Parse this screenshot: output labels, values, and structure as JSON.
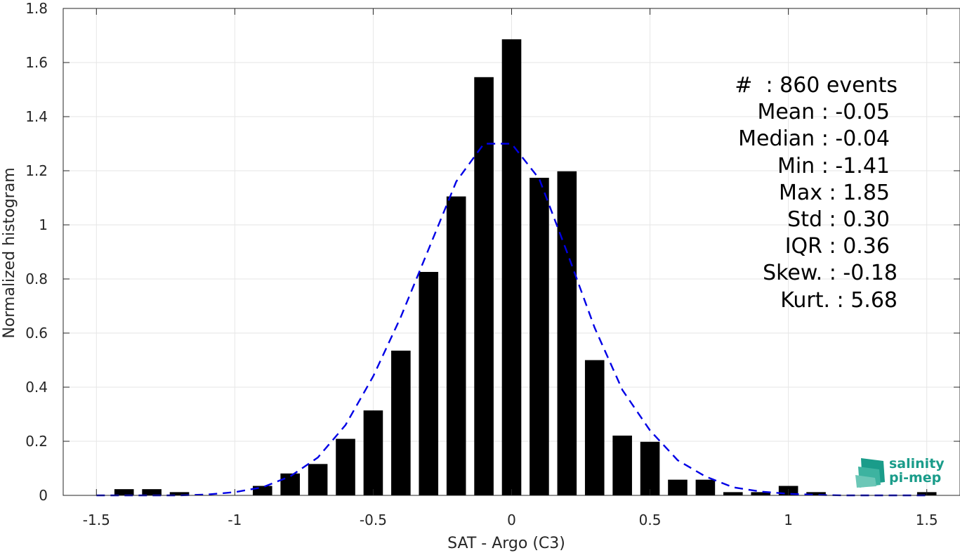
{
  "chart_data": {
    "type": "bar",
    "xlabel": "SAT - Argo (C3)",
    "ylabel": "Normalized histogram",
    "xlim": [
      -1.62,
      1.62
    ],
    "ylim": [
      0,
      1.8
    ],
    "xticks": [
      -1.5,
      -1,
      -0.5,
      0,
      0.5,
      1,
      1.5
    ],
    "xtick_labels": [
      "-1.5",
      "-1",
      "-0.5",
      "0",
      "0.5",
      "1",
      "1.5"
    ],
    "yticks": [
      0,
      0.2,
      0.4,
      0.6,
      0.8,
      1,
      1.2,
      1.4,
      1.6,
      1.8
    ],
    "ytick_labels": [
      "0",
      "0.2",
      "0.4",
      "0.6",
      "0.8",
      "1",
      "1.2",
      "1.4",
      "1.6",
      "1.8"
    ],
    "grid": true,
    "bar_color": "#000000",
    "curve_color": "#0000e6",
    "histogram": {
      "bin_centers": [
        -1.4,
        -1.3,
        -1.2,
        -0.9,
        -0.8,
        -0.7,
        -0.6,
        -0.5,
        -0.4,
        -0.3,
        -0.2,
        -0.1,
        0.0,
        0.1,
        0.2,
        0.3,
        0.4,
        0.5,
        0.6,
        0.7,
        0.8,
        0.9,
        1.0,
        1.1,
        1.5
      ],
      "values": [
        0.023,
        0.023,
        0.012,
        0.035,
        0.081,
        0.116,
        0.209,
        0.314,
        0.535,
        0.826,
        1.105,
        1.546,
        1.686,
        1.174,
        1.198,
        0.5,
        0.221,
        0.198,
        0.058,
        0.058,
        0.012,
        0.012,
        0.035,
        0.012,
        0.012
      ]
    },
    "fit_curve": {
      "x": [
        -1.5,
        -1.4,
        -1.3,
        -1.2,
        -1.1,
        -1.0,
        -0.9,
        -0.8,
        -0.7,
        -0.6,
        -0.5,
        -0.4,
        -0.3,
        -0.2,
        -0.1,
        -0.05,
        0.0,
        0.1,
        0.2,
        0.3,
        0.4,
        0.5,
        0.6,
        0.7,
        0.8,
        0.9,
        1.0,
        1.1,
        1.2,
        1.3,
        1.4,
        1.5
      ],
      "y": [
        0.0,
        0.0,
        0.0,
        0.0,
        0.003,
        0.012,
        0.03,
        0.07,
        0.14,
        0.26,
        0.44,
        0.66,
        0.91,
        1.16,
        1.3,
        1.3,
        1.3,
        1.17,
        0.9,
        0.62,
        0.39,
        0.24,
        0.13,
        0.07,
        0.03,
        0.014,
        0.006,
        0.002,
        0.0,
        0.0,
        0.0,
        0.0
      ]
    },
    "annotations": [
      "#  : 860 events",
      "Mean : -0.05",
      "Median : -0.04",
      "Min : -1.41",
      "Max : 1.85",
      "Std : 0.30",
      "IQR : 0.36",
      "Skew. : -0.18",
      "Kurt. : 5.68"
    ]
  },
  "logo": {
    "line1": "salinity",
    "line2": "pi-mep",
    "colors": [
      "#1a9c8a",
      "#6cc7b7"
    ]
  }
}
